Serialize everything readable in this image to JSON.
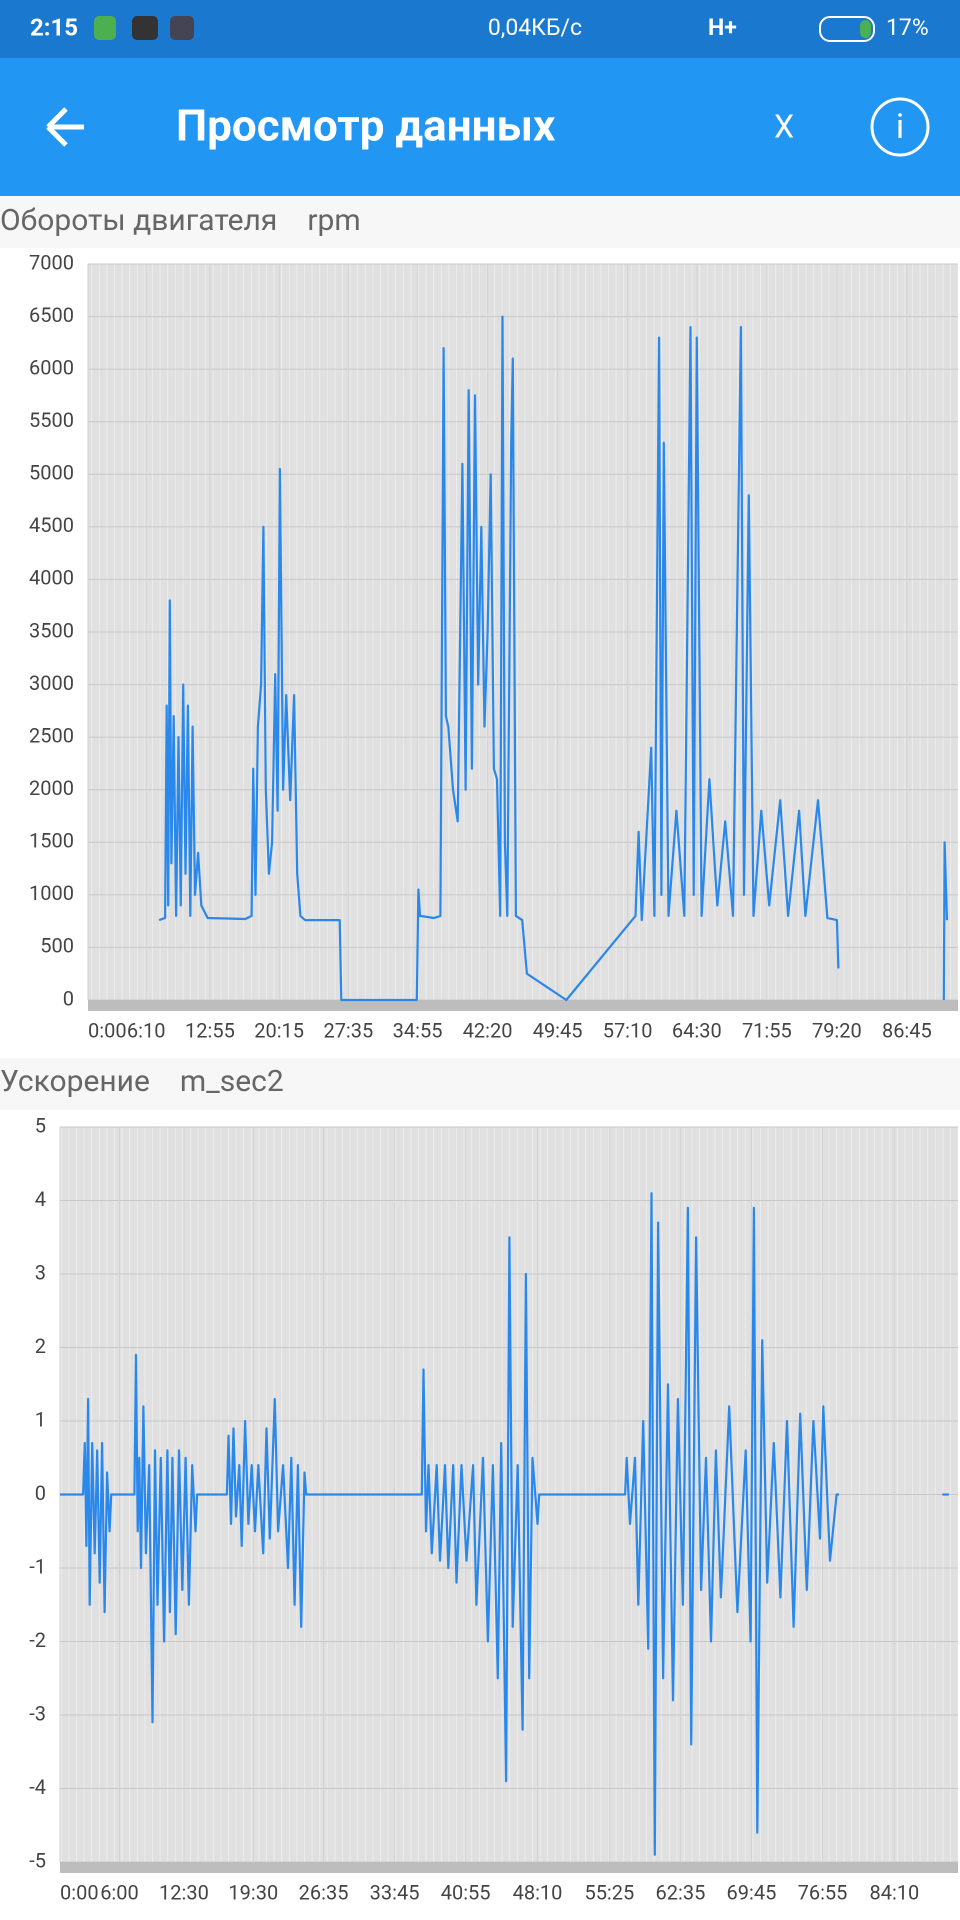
{
  "status_bar": {
    "time": "2:15",
    "speed": "0,04КБ/с",
    "network": "H+",
    "battery": "17%"
  },
  "app_bar": {
    "title": "Просмотр данных",
    "close": "X"
  },
  "chart_data": [
    {
      "type": "line",
      "title": "Обороты двигателя",
      "unit": "rpm",
      "color": "#2a88ea",
      "xlim": [
        0,
        5530
      ],
      "ylim": [
        0,
        7000
      ],
      "xticks": [
        {
          "value": 0,
          "label": "0:00"
        },
        {
          "value": 370,
          "label": "6:10"
        },
        {
          "value": 775,
          "label": "12:55"
        },
        {
          "value": 1215,
          "label": "20:15"
        },
        {
          "value": 1655,
          "label": "27:35"
        },
        {
          "value": 2095,
          "label": "34:55"
        },
        {
          "value": 2540,
          "label": "42:20"
        },
        {
          "value": 2985,
          "label": "49:45"
        },
        {
          "value": 3430,
          "label": "57:10"
        },
        {
          "value": 3870,
          "label": "64:30"
        },
        {
          "value": 4315,
          "label": "71:55"
        },
        {
          "value": 4760,
          "label": "79:20"
        },
        {
          "value": 5205,
          "label": "86:45"
        }
      ],
      "yticks": [
        0,
        500,
        1000,
        1500,
        2000,
        2500,
        3000,
        3500,
        4000,
        4500,
        5000,
        5500,
        6000,
        6500,
        7000
      ],
      "x": [
        452,
        490,
        500,
        510,
        520,
        530,
        545,
        560,
        575,
        590,
        605,
        620,
        635,
        650,
        665,
        680,
        700,
        720,
        760,
        1000,
        1040,
        1050,
        1065,
        1080,
        1100,
        1115,
        1130,
        1150,
        1170,
        1190,
        1205,
        1220,
        1240,
        1260,
        1285,
        1310,
        1330,
        1350,
        1380,
        1600,
        1610,
        2090,
        2100,
        2110,
        2200,
        2240,
        2260,
        2275,
        2290,
        2320,
        2350,
        2380,
        2400,
        2420,
        2440,
        2460,
        2480,
        2500,
        2520,
        2540,
        2560,
        2580,
        2600,
        2620,
        2635,
        2650,
        2665,
        2690,
        2700,
        2720,
        2760,
        2790,
        3040,
        3480,
        3500,
        3520,
        3580,
        3600,
        3630,
        3645,
        3660,
        3690,
        3740,
        3790,
        3830,
        3850,
        3870,
        3900,
        3950,
        4000,
        4050,
        4100,
        4150,
        4170,
        4200,
        4230,
        4280,
        4330,
        4400,
        4450,
        4520,
        4560,
        4640,
        4700,
        4760,
        4770,
        5000,
        5440,
        5445,
        5460
      ],
      "values": [
        760,
        780,
        2800,
        900,
        3800,
        1300,
        2700,
        800,
        2500,
        900,
        3000,
        1200,
        2800,
        800,
        2600,
        1000,
        1400,
        900,
        780,
        770,
        800,
        2200,
        1000,
        2600,
        3000,
        4500,
        2000,
        1200,
        1500,
        3100,
        1800,
        5050,
        2000,
        2900,
        1900,
        2900,
        1200,
        800,
        760,
        760,
        0,
        0,
        1050,
        800,
        780,
        800,
        6200,
        2700,
        2600,
        2000,
        1700,
        5100,
        2000,
        5800,
        2200,
        5750,
        3000,
        4500,
        2600,
        3500,
        5000,
        2200,
        2100,
        800,
        6500,
        1500,
        800,
        5300,
        6100,
        800,
        760,
        250,
        0,
        800,
        1600,
        760,
        2400,
        800,
        6300,
        1000,
        5300,
        800,
        1800,
        800,
        6400,
        1000,
        6300,
        800,
        2100,
        900,
        1700,
        800,
        6400,
        1000,
        4800,
        800,
        1800,
        900,
        1900,
        800,
        1800,
        800,
        1900,
        780,
        760,
        300,
        null,
        0,
        1500,
        760
      ]
    },
    {
      "type": "line",
      "title": "Ускорение",
      "unit": "m_sec2",
      "color": "#2a88ea",
      "xlim": [
        0,
        5435
      ],
      "ylim": [
        -5,
        5
      ],
      "xticks": [
        {
          "value": 0,
          "label": "0:00"
        },
        {
          "value": 360,
          "label": "6:00"
        },
        {
          "value": 750,
          "label": "12:30"
        },
        {
          "value": 1170,
          "label": "19:30"
        },
        {
          "value": 1595,
          "label": "26:35"
        },
        {
          "value": 2025,
          "label": "33:45"
        },
        {
          "value": 2455,
          "label": "40:55"
        },
        {
          "value": 2890,
          "label": "48:10"
        },
        {
          "value": 3325,
          "label": "55:25"
        },
        {
          "value": 3755,
          "label": "62:35"
        },
        {
          "value": 4185,
          "label": "69:45"
        },
        {
          "value": 4615,
          "label": "76:55"
        },
        {
          "value": 5050,
          "label": "84:10"
        }
      ],
      "yticks": [
        -5,
        -4,
        -3,
        -2,
        -1,
        0,
        1,
        2,
        3,
        4,
        5
      ],
      "x": [
        0,
        140,
        150,
        160,
        170,
        180,
        195,
        210,
        225,
        240,
        255,
        270,
        285,
        300,
        310,
        450,
        460,
        470,
        480,
        490,
        505,
        520,
        540,
        560,
        575,
        590,
        610,
        630,
        650,
        665,
        680,
        700,
        720,
        740,
        760,
        780,
        800,
        820,
        830,
        1010,
        1020,
        1035,
        1050,
        1065,
        1085,
        1100,
        1120,
        1140,
        1160,
        1180,
        1200,
        1230,
        1250,
        1270,
        1300,
        1320,
        1350,
        1380,
        1400,
        1420,
        1440,
        1460,
        1480,
        1490,
        2190,
        2200,
        2215,
        2230,
        2250,
        2280,
        2300,
        2330,
        2350,
        2380,
        2400,
        2430,
        2460,
        2500,
        2520,
        2560,
        2590,
        2620,
        2650,
        2670,
        2700,
        2720,
        2740,
        2770,
        2800,
        2820,
        2840,
        2860,
        2890,
        2900,
        3420,
        3430,
        3450,
        3480,
        3500,
        3530,
        3560,
        3580,
        3600,
        3620,
        3650,
        3680,
        3710,
        3740,
        3770,
        3800,
        3820,
        3850,
        3880,
        3910,
        3940,
        3970,
        4000,
        4050,
        4100,
        4150,
        4180,
        4200,
        4220,
        4250,
        4280,
        4320,
        4360,
        4400,
        4440,
        4480,
        4520,
        4560,
        4600,
        4620,
        4660,
        4700,
        4715,
        5000,
        5340,
        5380
      ],
      "values": [
        0,
        0,
        0.7,
        -0.7,
        1.3,
        -1.5,
        0.7,
        -0.8,
        0.6,
        -1.2,
        0.7,
        -1.6,
        0.3,
        -0.5,
        0,
        0,
        1.9,
        -0.5,
        0.5,
        -1.0,
        1.2,
        -0.8,
        0.4,
        -3.1,
        0.6,
        -1.5,
        0.5,
        -2.0,
        0.6,
        -1.6,
        0.5,
        -1.9,
        0.6,
        -1.3,
        0.5,
        -1.5,
        0.4,
        -0.5,
        0,
        0,
        0.8,
        -0.4,
        0.9,
        -0.3,
        0.4,
        -0.7,
        1.0,
        -0.4,
        0.4,
        -0.5,
        0.4,
        -0.8,
        0.9,
        -0.6,
        1.3,
        -0.5,
        0.4,
        -1.0,
        0.5,
        -1.5,
        0.4,
        -1.8,
        0.3,
        0,
        0,
        1.7,
        -0.5,
        0.4,
        -0.8,
        0.4,
        -0.9,
        0.4,
        -1.0,
        0.4,
        -1.2,
        0.4,
        -0.9,
        0.4,
        -1.5,
        0.5,
        -2.0,
        0.4,
        -2.5,
        0.7,
        -3.9,
        3.5,
        -1.8,
        0.4,
        -3.2,
        3.0,
        -2.5,
        0.5,
        -0.4,
        0,
        0,
        0.5,
        -0.4,
        0.5,
        -1.5,
        1.0,
        -2.1,
        4.1,
        -4.9,
        3.7,
        -2.5,
        1.5,
        -2.8,
        1.3,
        -1.5,
        3.9,
        -3.4,
        3.5,
        -1.3,
        0.5,
        -2.0,
        0.6,
        -1.4,
        1.2,
        -1.6,
        0.6,
        -2.0,
        3.9,
        -4.6,
        2.1,
        -1.2,
        0.7,
        -1.4,
        1.0,
        -1.8,
        1.1,
        -1.3,
        1.0,
        -0.6,
        1.2,
        -0.9,
        0,
        0,
        null,
        0,
        0
      ]
    }
  ]
}
